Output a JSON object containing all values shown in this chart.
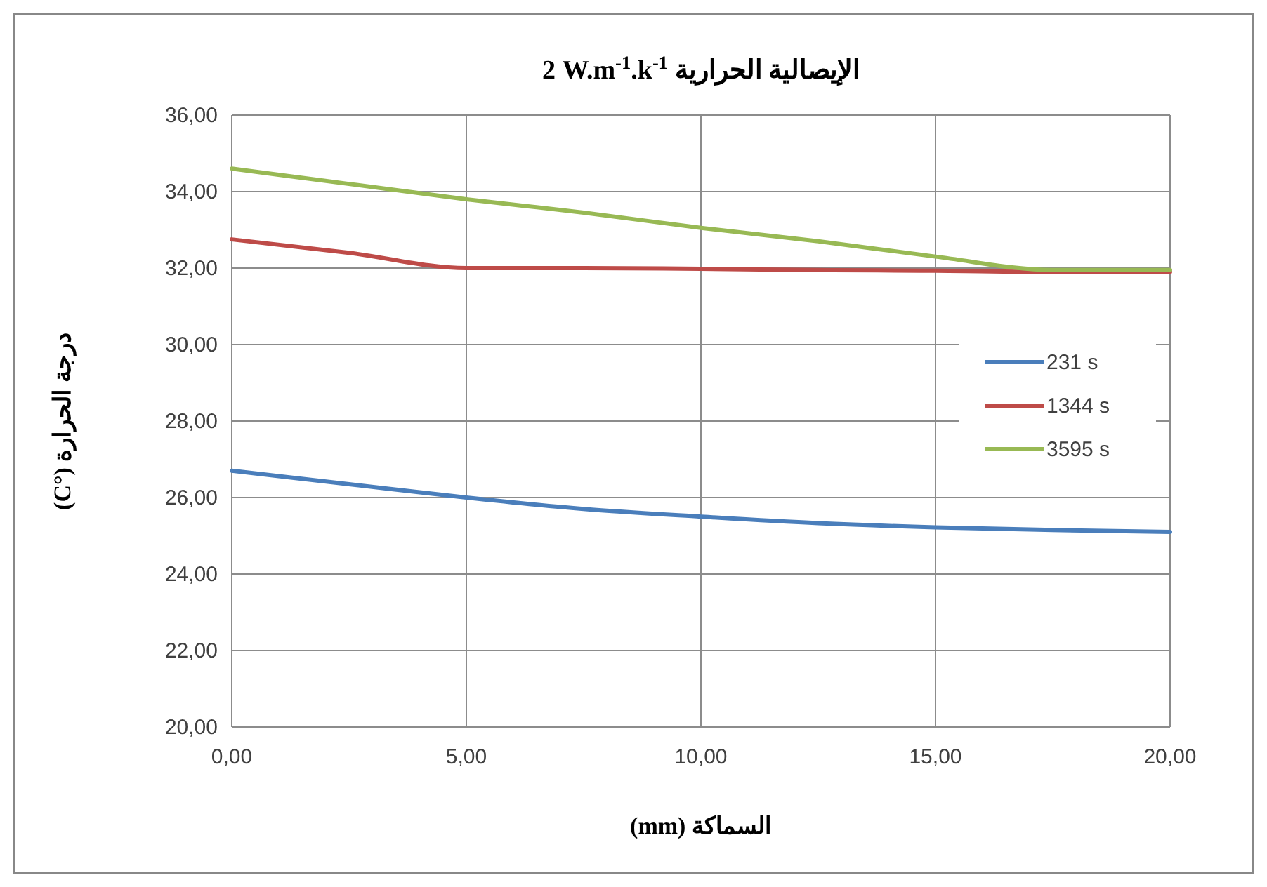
{
  "chart_data": {
    "type": "line",
    "title": "الإيصالية الحرارية 2 W.m$^{-1}$.k$^{-1}$",
    "xlabel": "السماكة (mm)",
    "ylabel": "درجة الحرارة (°C)",
    "x": [
      0,
      2.5,
      5,
      7.5,
      10,
      12.5,
      15,
      17.5,
      20
    ],
    "series": [
      {
        "name": "231 s",
        "color": "#4a7ebb",
        "values": [
          26.7,
          26.35,
          26.0,
          25.7,
          25.5,
          25.33,
          25.22,
          25.15,
          25.1
        ]
      },
      {
        "name": "1344 s",
        "color": "#be4b48",
        "values": [
          32.75,
          32.4,
          32.0,
          32.0,
          31.98,
          31.95,
          31.93,
          31.9,
          31.9
        ]
      },
      {
        "name": "3595 s",
        "color": "#98b954",
        "values": [
          34.6,
          34.2,
          33.8,
          33.45,
          33.05,
          32.7,
          32.3,
          31.95,
          31.95
        ]
      }
    ],
    "xlim": [
      0,
      20
    ],
    "xticks": [
      {
        "value": 0,
        "label": "0,00"
      },
      {
        "value": 5,
        "label": "5,00"
      },
      {
        "value": 10,
        "label": "10,00"
      },
      {
        "value": 15,
        "label": "15,00"
      },
      {
        "value": 20,
        "label": "20,00"
      }
    ],
    "ylim": [
      20,
      36
    ],
    "yticks": [
      {
        "value": 20,
        "label": "20,00"
      },
      {
        "value": 22,
        "label": "22,00"
      },
      {
        "value": 24,
        "label": "24,00"
      },
      {
        "value": 26,
        "label": "26,00"
      },
      {
        "value": 28,
        "label": "28,00"
      },
      {
        "value": 30,
        "label": "30,00"
      },
      {
        "value": 32,
        "label": "32,00"
      },
      {
        "value": 34,
        "label": "34,00"
      },
      {
        "value": 36,
        "label": "36,00"
      }
    ],
    "grid": true,
    "legend": "right",
    "line_style": "solid"
  }
}
